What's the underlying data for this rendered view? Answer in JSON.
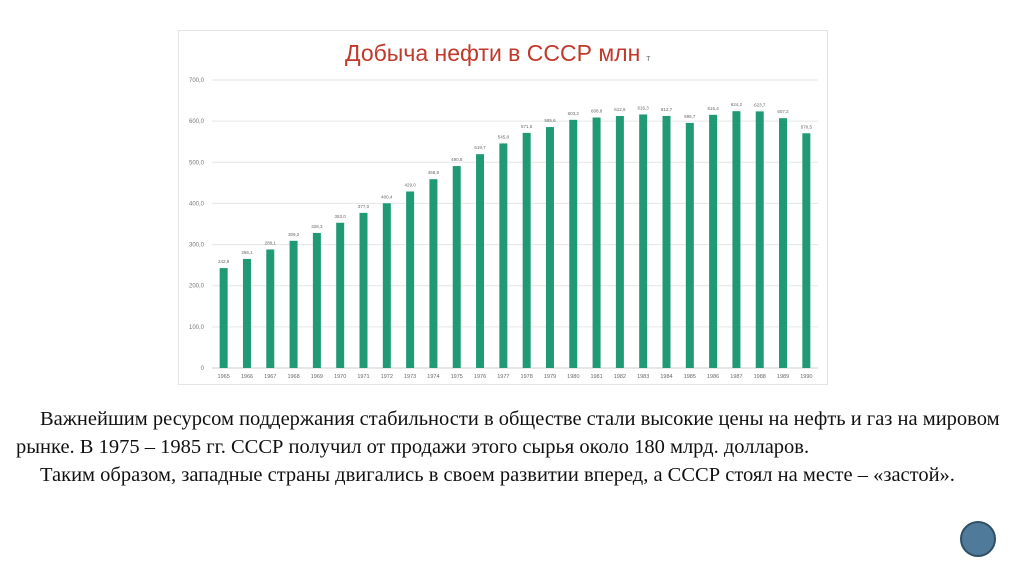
{
  "chart_data": {
    "type": "bar",
    "title": "Добыча нефти в СССР млн",
    "title_suffix": "т",
    "categories": [
      "1965",
      "1966",
      "1967",
      "1968",
      "1969",
      "1970",
      "1971",
      "1972",
      "1973",
      "1974",
      "1975",
      "1976",
      "1977",
      "1978",
      "1979",
      "1980",
      "1981",
      "1982",
      "1983",
      "1984",
      "1985",
      "1986",
      "1987",
      "1988",
      "1989",
      "1990"
    ],
    "values": [
      242.9,
      265.1,
      288.1,
      309.2,
      328.3,
      353.0,
      377.0,
      400.4,
      429.0,
      458.9,
      490.8,
      519.7,
      545.8,
      571.5,
      585.6,
      603.2,
      608.8,
      612.6,
      616.3,
      612.7,
      595.7,
      615.4,
      624.2,
      623.7,
      607.2,
      570.5
    ],
    "yticks": [
      "0",
      "100,0",
      "200,0",
      "300,0",
      "400,0",
      "500,0",
      "600,0",
      "700,0"
    ],
    "ylim": [
      0,
      700
    ],
    "grid": true,
    "bar_color": "#1f9a74"
  },
  "slide": {
    "para1": "Важнейшим ресурсом поддержания стабильности в обществе стали высокие цены на нефть и газ на мировом рынке. В 1975 – 1985 гг. СССР получил от продажи этого сырья около 180 млрд. долларов.",
    "para2": "Таким образом, западные страны двигались в своем развитии вперед, а СССР стоял на месте – «застой»."
  }
}
